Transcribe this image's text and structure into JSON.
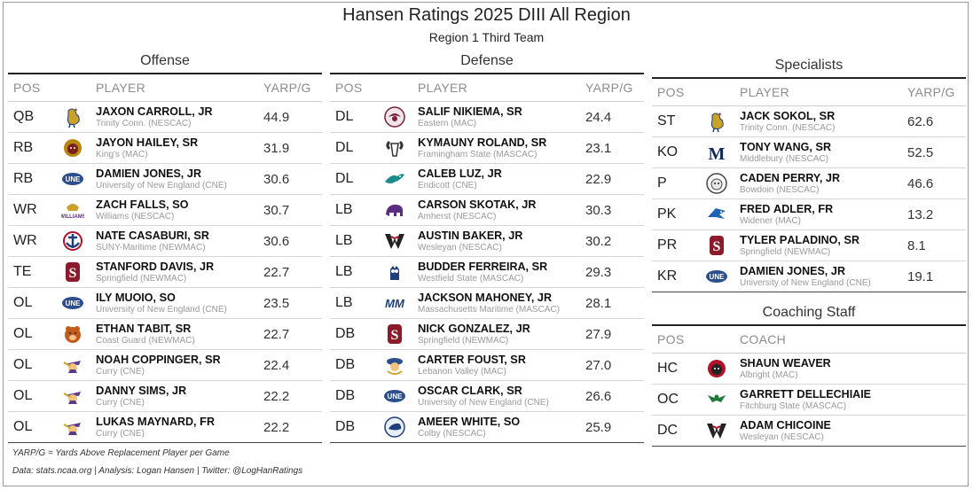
{
  "title": "Hansen Ratings 2025 DIII All Region",
  "subtitle": "Region 1 Third Team",
  "columns": {
    "pos": "POS",
    "player": "PLAYER",
    "value": "YARP/G",
    "coach": "COACH"
  },
  "offense": {
    "title": "Offense",
    "rows": [
      {
        "pos": "QB",
        "name": "Jaxon Carroll, Jr",
        "school": "Trinity Conn. (NESCAC)",
        "value": "44.9",
        "logo": "bantam-icon",
        "color": "#c9a227"
      },
      {
        "pos": "RB",
        "name": "Jayon Hailey, Sr",
        "school": "King's (MAC)",
        "value": "31.9",
        "logo": "lion-icon",
        "color": "#b8860b"
      },
      {
        "pos": "RB",
        "name": "Damien Jones, Jr",
        "school": "University of New England (CNE)",
        "value": "30.6",
        "logo": "une-icon",
        "color": "#2b4f8c"
      },
      {
        "pos": "WR",
        "name": "Zach Falls, So",
        "school": "Williams (NESCAC)",
        "value": "30.7",
        "logo": "williams-icon",
        "color": "#5a2d82"
      },
      {
        "pos": "WR",
        "name": "Nate Casaburi, Sr",
        "school": "SUNY-Maritime (NEWMAC)",
        "value": "30.6",
        "logo": "maritime-anchor-icon",
        "color": "#1f3f7a"
      },
      {
        "pos": "TE",
        "name": "Stanford Davis, Jr",
        "school": "Springfield (NEWMAC)",
        "value": "22.7",
        "logo": "springfield-s-icon",
        "color": "#8b1a2b"
      },
      {
        "pos": "OL",
        "name": "Ily Muoio, So",
        "school": "University of New England (CNE)",
        "value": "23.5",
        "logo": "une-icon",
        "color": "#2b4f8c"
      },
      {
        "pos": "OL",
        "name": "Ethan Tabit, Sr",
        "school": "Coast Guard (NEWMAC)",
        "value": "22.7",
        "logo": "bear-icon",
        "color": "#c55a1d"
      },
      {
        "pos": "OL",
        "name": "Noah Coppinger, Sr",
        "school": "Curry (CNE)",
        "value": "22.4",
        "logo": "colonel-icon",
        "color": "#5b3a8e"
      },
      {
        "pos": "OL",
        "name": "Danny Sims, Jr",
        "school": "Curry (CNE)",
        "value": "22.2",
        "logo": "colonel-icon",
        "color": "#5b3a8e"
      },
      {
        "pos": "OL",
        "name": "Lukas Maynard, Fr",
        "school": "Curry (CNE)",
        "value": "22.2",
        "logo": "colonel-icon",
        "color": "#5b3a8e"
      }
    ]
  },
  "defense": {
    "title": "Defense",
    "rows": [
      {
        "pos": "DL",
        "name": "Salif Nikiema, Sr",
        "school": "Eastern (MAC)",
        "value": "24.4",
        "logo": "eagle-icon",
        "color": "#7a1f3d"
      },
      {
        "pos": "DL",
        "name": "Kymauny Roland, Sr",
        "school": "Framingham State (MASCAC)",
        "value": "23.1",
        "logo": "ram-icon",
        "color": "#333333"
      },
      {
        "pos": "DL",
        "name": "Caleb Luz, Jr",
        "school": "Endicott (CNE)",
        "value": "22.9",
        "logo": "gull-icon",
        "color": "#1b8a8a"
      },
      {
        "pos": "LB",
        "name": "Carson Skotak, Jr",
        "school": "Amherst (NESCAC)",
        "value": "30.3",
        "logo": "mammoth-icon",
        "color": "#5a2d82"
      },
      {
        "pos": "LB",
        "name": "Austin Baker, Jr",
        "school": "Wesleyan (NESCAC)",
        "value": "30.2",
        "logo": "wesleyan-w-icon",
        "color": "#b0122c"
      },
      {
        "pos": "LB",
        "name": "Budder Ferreira, Sr",
        "school": "Westfield State (MASCAC)",
        "value": "29.3",
        "logo": "owl-icon",
        "color": "#1f3f7a"
      },
      {
        "pos": "LB",
        "name": "Jackson Mahoney, Jr",
        "school": "Massachusetts Maritime (MASCAC)",
        "value": "28.1",
        "logo": "mm-icon",
        "color": "#1f3f7a"
      },
      {
        "pos": "DB",
        "name": "Nick Gonzalez, Jr",
        "school": "Springfield (NEWMAC)",
        "value": "27.9",
        "logo": "springfield-s-icon",
        "color": "#8b1a2b"
      },
      {
        "pos": "DB",
        "name": "Carter Foust, Sr",
        "school": "Lebanon Valley (MAC)",
        "value": "27.0",
        "logo": "dutchman-icon",
        "color": "#2b4f8c"
      },
      {
        "pos": "DB",
        "name": "Oscar Clark, Sr",
        "school": "University of New England (CNE)",
        "value": "26.6",
        "logo": "une-icon",
        "color": "#2b4f8c"
      },
      {
        "pos": "DB",
        "name": "Ameer White, So",
        "school": "Colby (NESCAC)",
        "value": "25.9",
        "logo": "mule-icon",
        "color": "#1f3f7a"
      }
    ]
  },
  "specialists": {
    "title": "Specialists",
    "rows": [
      {
        "pos": "ST",
        "name": "Jack Sokol, Sr",
        "school": "Trinity Conn. (NESCAC)",
        "value": "62.6",
        "logo": "bantam-icon",
        "color": "#c9a227"
      },
      {
        "pos": "KO",
        "name": "Tony Wang, Sr",
        "school": "Middlebury (NESCAC)",
        "value": "52.5",
        "logo": "middlebury-m-icon",
        "color": "#0d2a5c"
      },
      {
        "pos": "P",
        "name": "Caden Perry, Jr",
        "school": "Bowdoin (NESCAC)",
        "value": "46.6",
        "logo": "polar-bear-icon",
        "color": "#444444"
      },
      {
        "pos": "PK",
        "name": "Fred Adler, Fr",
        "school": "Widener (MAC)",
        "value": "13.2",
        "logo": "widener-pride-icon",
        "color": "#1f63b5"
      },
      {
        "pos": "PR",
        "name": "Tyler Paladino, Sr",
        "school": "Springfield (NEWMAC)",
        "value": "8.1",
        "logo": "springfield-s-icon",
        "color": "#8b1a2b"
      },
      {
        "pos": "KR",
        "name": "Damien Jones, Jr",
        "school": "University of New England (CNE)",
        "value": "19.1",
        "logo": "une-icon",
        "color": "#2b4f8c"
      }
    ]
  },
  "coaching": {
    "title": "Coaching Staff",
    "rows": [
      {
        "pos": "HC",
        "name": "Shaun Weaver",
        "school": "Albright (MAC)",
        "logo": "albright-lion-icon",
        "color": "#b0122c"
      },
      {
        "pos": "OC",
        "name": "Garrett DelleChiaie",
        "school": "Fitchburg State (MASCAC)",
        "logo": "falcon-icon",
        "color": "#1e7a3a"
      },
      {
        "pos": "DC",
        "name": "Adam Chicoine",
        "school": "Wesleyan (NESCAC)",
        "logo": "wesleyan-w-icon",
        "color": "#b0122c"
      }
    ]
  },
  "footnote": "YARP/G = Yards Above Replacement Player per Game",
  "credits": "Data: stats.ncaa.org | Analysis: Logan Hansen | Twitter: @LogHanRatings"
}
